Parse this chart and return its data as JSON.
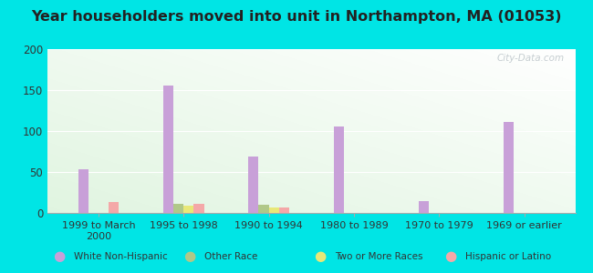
{
  "title": "Year householders moved into unit in Northampton, MA (01053)",
  "categories": [
    "1999 to March\n2000",
    "1995 to 1998",
    "1990 to 1994",
    "1980 to 1989",
    "1970 to 1979",
    "1969 or earlier"
  ],
  "series": {
    "White Non-Hispanic": [
      53,
      156,
      69,
      106,
      14,
      111
    ],
    "Other Race": [
      0,
      11,
      10,
      0,
      0,
      0
    ],
    "Two or More Races": [
      0,
      9,
      7,
      0,
      0,
      0
    ],
    "Hispanic or Latino": [
      13,
      11,
      7,
      0,
      0,
      0
    ]
  },
  "colors": {
    "White Non-Hispanic": "#c8a0d8",
    "Other Race": "#b0c888",
    "Two or More Races": "#e8e878",
    "Hispanic or Latino": "#f4a8a8"
  },
  "ylim": [
    0,
    200
  ],
  "yticks": [
    0,
    50,
    100,
    150,
    200
  ],
  "background_color": "#00e5e5",
  "watermark": "City-Data.com",
  "legend_entries": [
    "White Non-Hispanic",
    "Other Race",
    "Two or More Races",
    "Hispanic or Latino"
  ]
}
